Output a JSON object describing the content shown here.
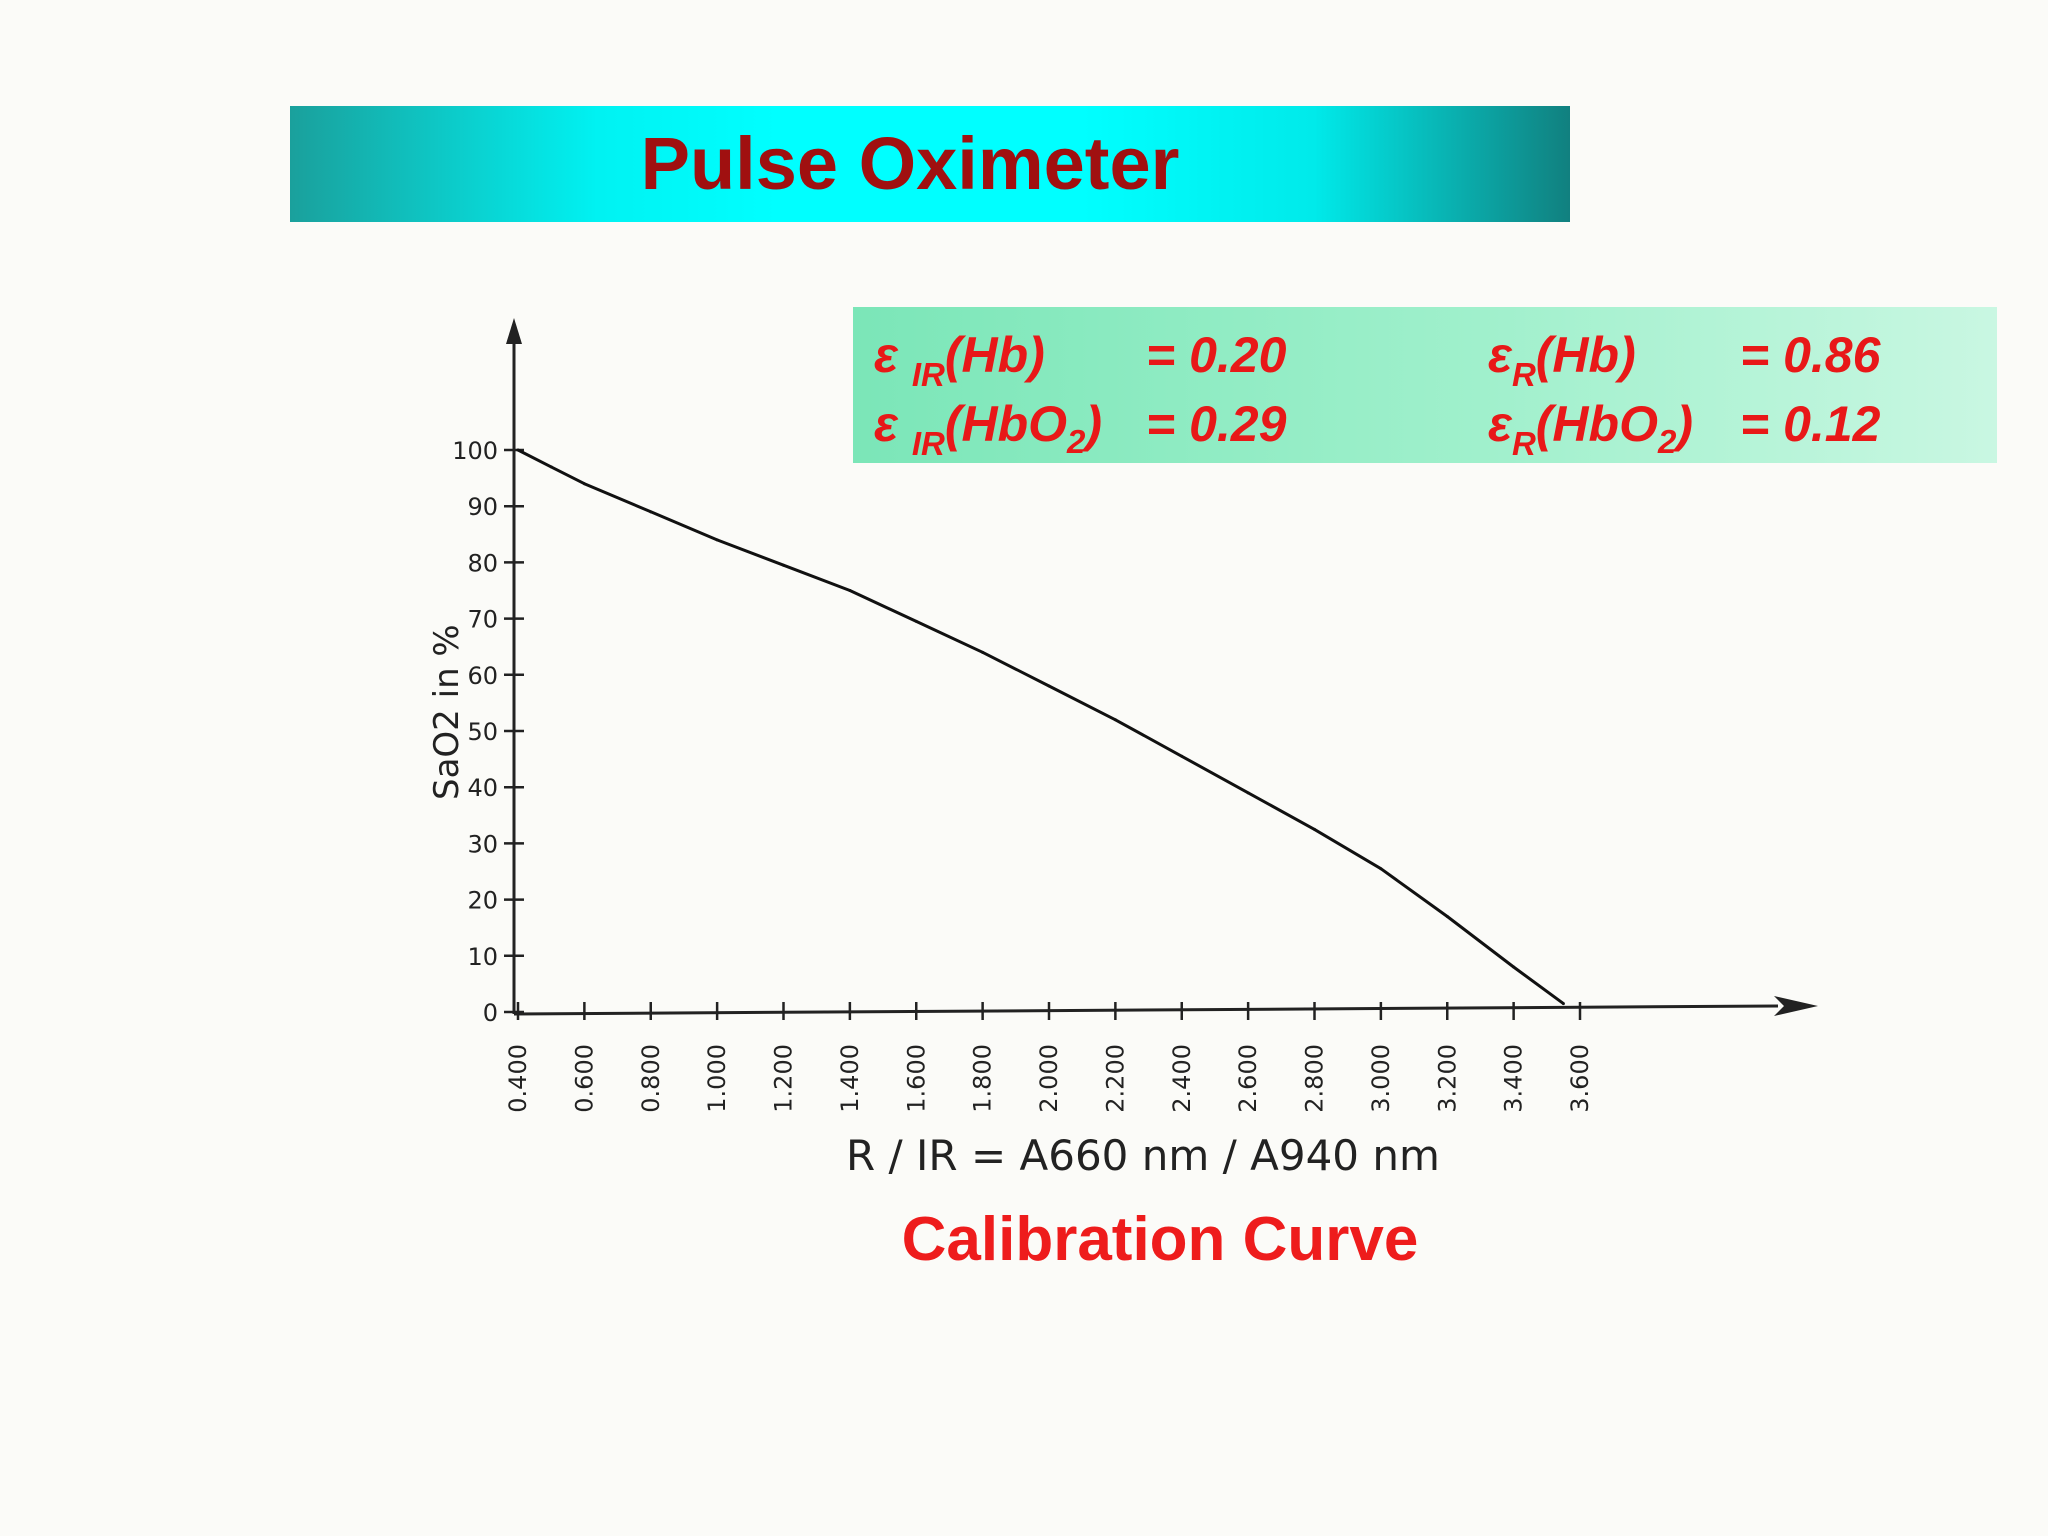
{
  "slide": {
    "title": "Pulse Oximeter",
    "caption": "Calibration Curve",
    "colors": {
      "title": "#a01010",
      "caption": "#ee1c1c",
      "banner": "#00ffff",
      "coef_box": "#a0f0cc"
    }
  },
  "coefficients": [
    {
      "symbol": "ε ",
      "sub": "IR",
      "species": "(Hb)",
      "species_sub": "",
      "species_end": "",
      "value": "= 0.20"
    },
    {
      "symbol": "ε ",
      "sub": "IR",
      "species": "(HbO",
      "species_sub": "2",
      "species_end": ")",
      "value": "= 0.29"
    },
    {
      "symbol": "ε",
      "sub": "R",
      "species": "(Hb)",
      "species_sub": "",
      "species_end": "",
      "value": "= 0.86"
    },
    {
      "symbol": "ε",
      "sub": "R",
      "species": "(HbO",
      "species_sub": "2",
      "species_end": ")",
      "value": "= 0.12"
    }
  ],
  "chart_data": {
    "type": "line",
    "xlabel": "R / IR = A660 nm / A940 nm",
    "ylabel": "SaO2 in %",
    "x_ticks": [
      "0.400",
      "0.600",
      "0.800",
      "1.000",
      "1.200",
      "1.400",
      "1.600",
      "1.800",
      "2.000",
      "2.200",
      "2.400",
      "2.600",
      "2.800",
      "3.000",
      "3.200",
      "3.400",
      "3.600"
    ],
    "y_ticks": [
      "0",
      "10",
      "20",
      "30",
      "40",
      "50",
      "60",
      "70",
      "80",
      "90",
      "100"
    ],
    "xlim": [
      0.4,
      3.6
    ],
    "ylim": [
      0,
      100
    ],
    "grid": false,
    "series": [
      {
        "x": [
          0.4,
          0.5,
          0.6,
          0.8,
          1.0,
          1.2,
          1.4,
          1.6,
          1.8,
          2.0,
          2.2,
          2.4,
          2.6,
          2.8,
          3.0,
          3.2,
          3.4,
          3.55
        ],
        "values": [
          100,
          97,
          94,
          89,
          84,
          79.5,
          75,
          69.5,
          64,
          58,
          52,
          45.5,
          39,
          32.5,
          25.5,
          17,
          8,
          1.5
        ]
      }
    ]
  }
}
